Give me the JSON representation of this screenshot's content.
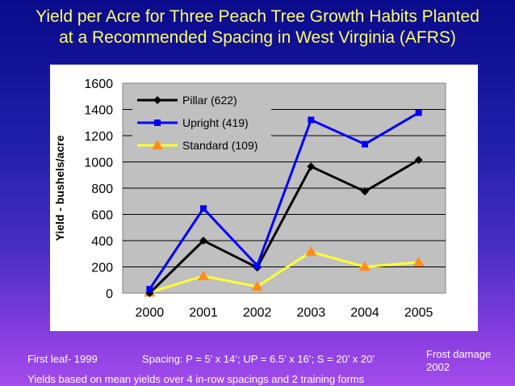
{
  "title_line1": "Yield per Acre for Three Peach Tree Growth Habits Planted",
  "title_line2": "at a Recommended Spacing in West Virginia (AFRS)",
  "chart_data": {
    "type": "line",
    "title": "Yield per Acre for Three Peach Tree Growth Habits Planted at a Recommended Spacing in West Virginia (AFRS)",
    "xlabel": "",
    "ylabel": "Yield - bushels/acre",
    "x": [
      "2000",
      "2001",
      "2002",
      "2003",
      "2004",
      "2005"
    ],
    "ylim": [
      0,
      1600
    ],
    "yticks": [
      "0",
      "200",
      "400",
      "600",
      "800",
      "1000",
      "1200",
      "1400",
      "1600"
    ],
    "grid": true,
    "legend_position": "top-left",
    "series": [
      {
        "name": "Pillar (622)",
        "values": [
          0,
          400,
          195,
          965,
          775,
          1015
        ],
        "color": "#000000",
        "marker": "diamond"
      },
      {
        "name": "Upright (419)",
        "values": [
          30,
          645,
          210,
          1320,
          1135,
          1375
        ],
        "color": "#0000ff",
        "marker": "square"
      },
      {
        "name": "Standard (109)",
        "values": [
          5,
          130,
          50,
          315,
          200,
          235
        ],
        "color": "#ffff33",
        "marker": "triangle",
        "marker_color": "#ff8c1a"
      }
    ]
  },
  "footnotes": {
    "first_leaf": "First leaf- 1999",
    "spacing": "Spacing: P = 5’ x 14’; UP = 6.5’ x 16’; S = 20’ x 20’",
    "frost": "Frost damage 2002",
    "yields": "Yields based on mean yields over 4 in-row spacings and 2 training forms"
  }
}
